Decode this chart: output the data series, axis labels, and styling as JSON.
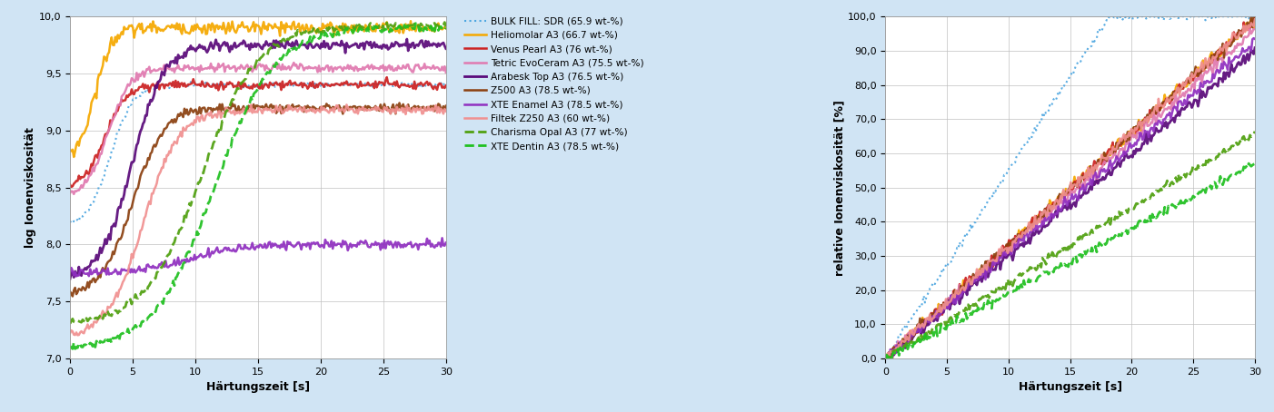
{
  "left_ylabel": "log Ionenviskosität",
  "right_ylabel": "relative Ionenviskosität [%]",
  "xlabel": "Härtungszeit [s]",
  "xlim": [
    0,
    30
  ],
  "left_ylim": [
    7.0,
    10.0
  ],
  "right_ylim": [
    0.0,
    100.0
  ],
  "left_yticks": [
    7.0,
    7.5,
    8.0,
    8.5,
    9.0,
    9.5,
    10.0
  ],
  "right_yticks": [
    0.0,
    10.0,
    20.0,
    30.0,
    40.0,
    50.0,
    60.0,
    70.0,
    80.0,
    90.0,
    100.0
  ],
  "xticks": [
    0,
    5,
    10,
    15,
    20,
    25,
    30
  ],
  "legend_entries": [
    {
      "label": "BULK FILL: SDR (65.9 wt-%)",
      "color": "#4da6e0",
      "linestyle": "dotted",
      "lw": 1.5
    },
    {
      "label": "Heliomolar A3 (66.7 wt-%)",
      "color": "#f5a800",
      "linestyle": "solid",
      "lw": 1.8
    },
    {
      "label": "Venus Pearl A3 (76 wt-%)",
      "color": "#cc2222",
      "linestyle": "solid",
      "lw": 1.8
    },
    {
      "label": "Tetric EvoCeram A3 (75.5 wt-%)",
      "color": "#e07ab0",
      "linestyle": "solid",
      "lw": 1.8
    },
    {
      "label": "Arabesk Top A3 (76.5 wt-%)",
      "color": "#5a0a7a",
      "linestyle": "solid",
      "lw": 2.0
    },
    {
      "label": "Z500 A3 (78.5 wt-%)",
      "color": "#8b4010",
      "linestyle": "solid",
      "lw": 1.8
    },
    {
      "label": "XTE Enamel A3 (78.5 wt-%)",
      "color": "#9030c0",
      "linestyle": "solid",
      "lw": 1.8
    },
    {
      "label": "Filtek Z250 A3 (60 wt-%)",
      "color": "#f09090",
      "linestyle": "solid",
      "lw": 1.8
    },
    {
      "label": "Charisma Opal A3 (77 wt-%)",
      "color": "#50a010",
      "linestyle": "dashed",
      "lw": 2.0
    },
    {
      "label": "XTE Dentin A3 (78.5 wt-%)",
      "color": "#20c020",
      "linestyle": "dashed",
      "lw": 2.0
    }
  ],
  "background_color": "#d0e4f4",
  "plot_bg_color": "#ffffff",
  "grid_color": "#c0c0c0",
  "left_log_params": [
    [
      8.15,
      9.4,
      1.1,
      3.2,
      0.012
    ],
    [
      8.75,
      9.9,
      1.5,
      2.0,
      0.028
    ],
    [
      8.5,
      9.4,
      1.2,
      2.8,
      0.018
    ],
    [
      8.4,
      9.55,
      1.1,
      3.0,
      0.018
    ],
    [
      7.7,
      9.75,
      0.8,
      5.0,
      0.022
    ],
    [
      7.55,
      9.2,
      0.8,
      5.0,
      0.018
    ],
    [
      7.75,
      8.0,
      0.5,
      9.5,
      0.018
    ],
    [
      7.18,
      9.18,
      0.7,
      5.8,
      0.018
    ],
    [
      7.3,
      9.92,
      0.45,
      10.5,
      0.015
    ],
    [
      7.08,
      9.9,
      0.42,
      11.5,
      0.015
    ]
  ],
  "right_linear_params": [
    [
      0.0,
      3.5,
      75.0,
      15.0,
      0.6
    ],
    [
      0.0,
      0.0,
      100.0,
      30.0,
      0.8
    ],
    [
      0.0,
      0.0,
      100.0,
      30.0,
      0.8
    ],
    [
      0.0,
      0.0,
      100.0,
      30.0,
      0.8
    ],
    [
      0.0,
      0.0,
      90.0,
      30.0,
      0.8
    ],
    [
      0.0,
      0.0,
      100.0,
      30.0,
      0.8
    ],
    [
      0.0,
      0.0,
      95.0,
      30.0,
      0.8
    ],
    [
      0.0,
      0.0,
      100.0,
      30.0,
      0.8
    ],
    [
      0.0,
      2.0,
      65.0,
      30.0,
      0.6
    ],
    [
      0.0,
      1.0,
      55.0,
      30.0,
      0.6
    ]
  ]
}
